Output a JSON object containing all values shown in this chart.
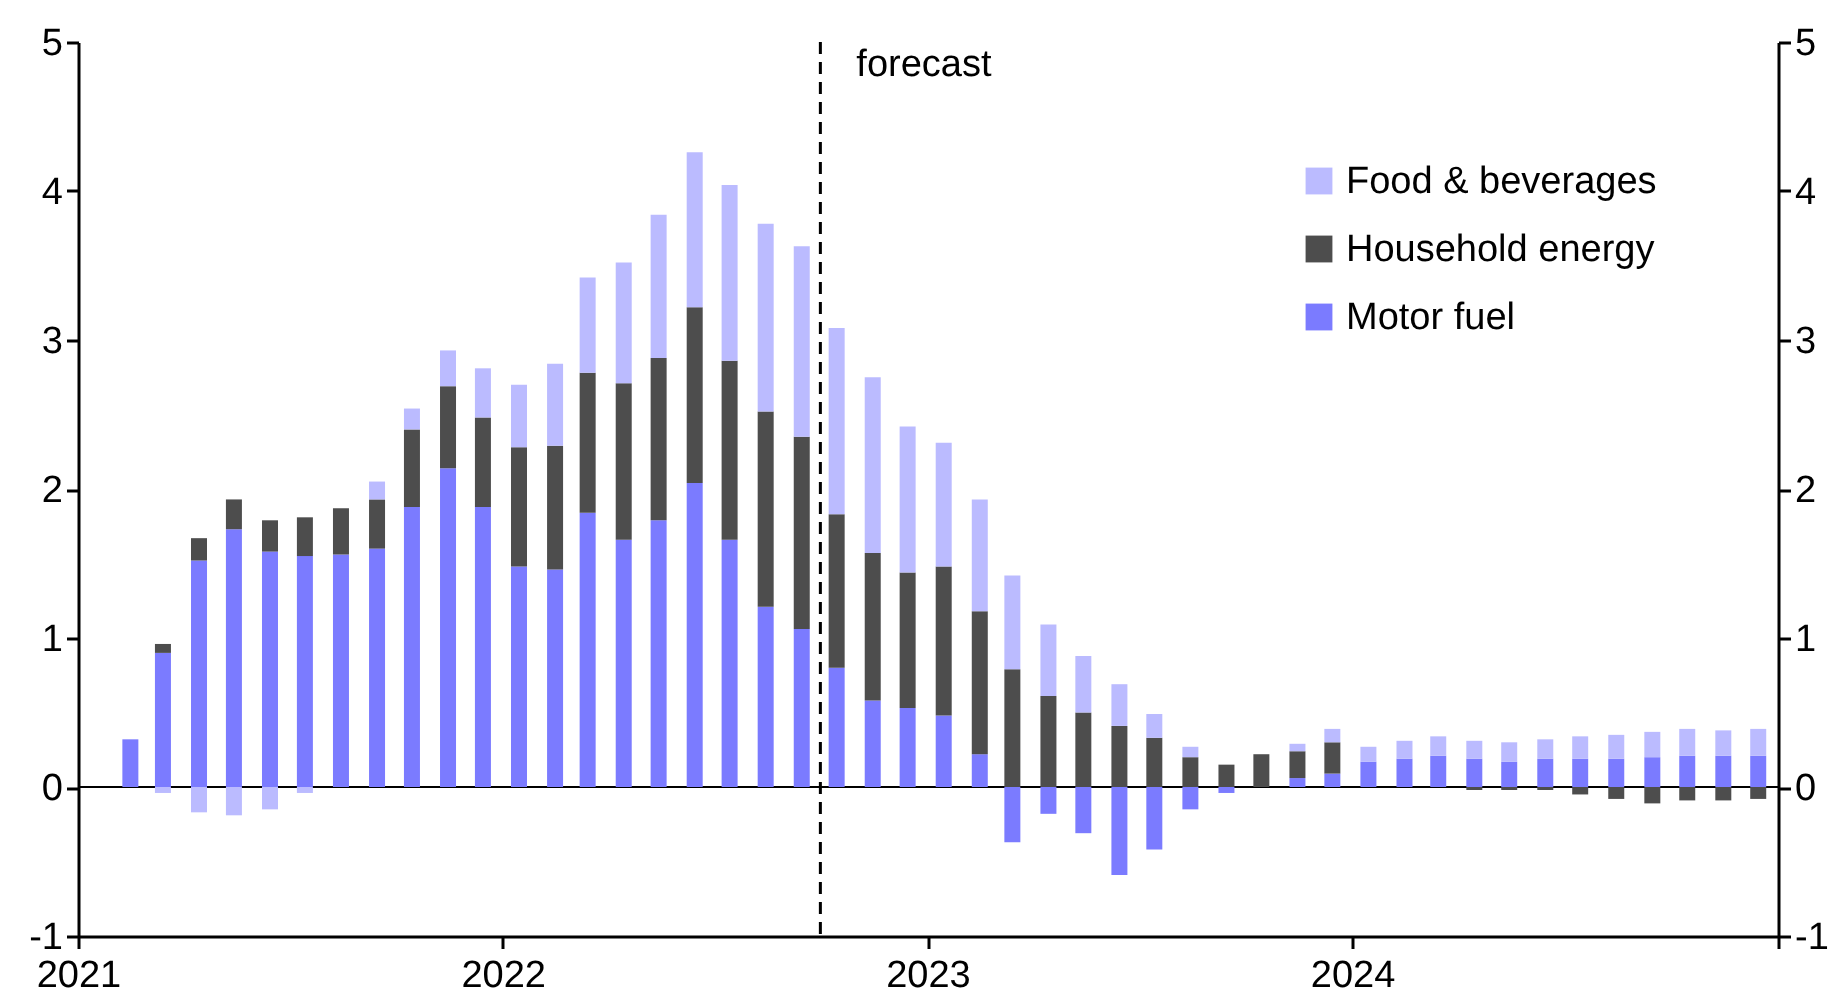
{
  "chart_data": {
    "type": "bar",
    "stacked": true,
    "x": [
      "2021-02-15",
      "2021-03-15",
      "2021-04-15",
      "2021-05-15",
      "2021-06-15",
      "2021-07-15",
      "2021-08-15",
      "2021-09-15",
      "2021-10-15",
      "2021-11-15",
      "2021-12-15",
      "2022-01-15",
      "2022-02-15",
      "2022-03-15",
      "2022-04-15",
      "2022-05-15",
      "2022-06-15",
      "2022-07-15",
      "2022-08-15",
      "2022-09-15",
      "2022-10-15",
      "2022-11-15",
      "2022-12-15",
      "2023-01-15",
      "2023-02-15",
      "2023-03-15",
      "2023-04-15",
      "2023-05-15",
      "2023-06-15",
      "2023-07-15",
      "2023-08-15",
      "2023-09-15",
      "2023-10-15",
      "2023-11-15",
      "2023-12-15",
      "2024-01-15",
      "2024-02-15",
      "2024-03-15",
      "2024-04-15",
      "2024-05-15",
      "2024-06-15",
      "2024-07-15",
      "2024-08-15",
      "2024-09-15",
      "2024-10-15",
      "2024-11-15",
      "2024-12-15"
    ],
    "series": [
      {
        "name": "Motor fuel",
        "color": "#7b7bff",
        "values": [
          0.32,
          0.9,
          1.52,
          1.73,
          1.58,
          1.55,
          1.56,
          1.6,
          1.88,
          2.14,
          1.88,
          1.48,
          1.46,
          1.84,
          1.66,
          1.79,
          2.04,
          1.66,
          1.21,
          1.06,
          0.8,
          0.58,
          0.53,
          0.48,
          0.22,
          -0.37,
          -0.18,
          -0.31,
          -0.59,
          -0.42,
          -0.15,
          -0.04,
          0,
          0.06,
          0.09,
          0.17,
          0.19,
          0.21,
          0.19,
          0.17,
          0.19,
          0.19,
          0.19,
          0.2,
          0.21,
          0.21,
          0.21
        ]
      },
      {
        "name": "Household energy",
        "color": "#4d4d4d",
        "values": [
          0,
          0.06,
          0.15,
          0.2,
          0.21,
          0.26,
          0.31,
          0.33,
          0.52,
          0.55,
          0.6,
          0.8,
          0.83,
          0.94,
          1.05,
          1.09,
          1.18,
          1.2,
          1.31,
          1.29,
          1.03,
          0.99,
          0.91,
          1.0,
          0.96,
          0.79,
          0.61,
          0.5,
          0.41,
          0.33,
          0.2,
          0.15,
          0.22,
          0.18,
          0.21,
          0,
          0,
          0,
          -0.02,
          -0.02,
          -0.02,
          -0.05,
          -0.08,
          -0.11,
          -0.09,
          -0.09,
          -0.08
        ]
      },
      {
        "name": "Food & beverages",
        "color": "#bbbbff",
        "values": [
          0,
          -0.04,
          -0.17,
          -0.19,
          -0.15,
          -0.04,
          0,
          0.12,
          0.14,
          0.24,
          0.33,
          0.42,
          0.55,
          0.64,
          0.81,
          0.96,
          1.04,
          1.18,
          1.26,
          1.28,
          1.25,
          1.18,
          0.98,
          0.83,
          0.75,
          0.63,
          0.48,
          0.38,
          0.28,
          0.16,
          0.07,
          0,
          0,
          0.05,
          0.09,
          0.1,
          0.12,
          0.13,
          0.12,
          0.13,
          0.13,
          0.15,
          0.16,
          0.17,
          0.18,
          0.17,
          0.18
        ]
      }
    ],
    "xlim": [
      "2021-01-01",
      "2025-01-01"
    ],
    "xticks": [
      {
        "value": "2021-01-01",
        "label": "2021"
      },
      {
        "value": "2022-01-01",
        "label": "2022"
      },
      {
        "value": "2023-01-01",
        "label": "2023"
      },
      {
        "value": "2024-01-01",
        "label": "2024"
      },
      {
        "value": "2025-01-01",
        "label": null
      }
    ],
    "ylim": [
      -1,
      5
    ],
    "yticks": [
      -1,
      0,
      1,
      2,
      3,
      4,
      5
    ],
    "y2lim": [
      -1,
      5
    ],
    "y2ticks": [
      -1,
      0,
      1,
      2,
      3,
      4,
      5
    ],
    "ref_lines": [
      {
        "axis": "x",
        "value": "2022-10-01",
        "label": "forecast",
        "line_style": "dashed",
        "color": "#000000"
      },
      {
        "axis": "y",
        "value": 0,
        "label": null,
        "line_style": "solid",
        "color": "#000000"
      }
    ],
    "legend": "top right",
    "grid": false
  }
}
